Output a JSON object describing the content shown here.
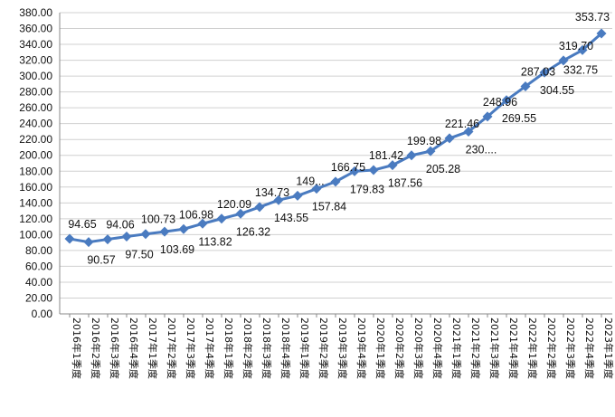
{
  "chart_data": {
    "type": "line",
    "title": "",
    "xlabel": "",
    "ylabel": "",
    "ylim": [
      0,
      380
    ],
    "y_ticks": [
      "0.00",
      "20.00",
      "40.00",
      "60.00",
      "80.00",
      "100.00",
      "120.00",
      "140.00",
      "160.00",
      "180.00",
      "200.00",
      "220.00",
      "240.00",
      "260.00",
      "280.00",
      "300.00",
      "320.00",
      "340.00",
      "360.00",
      "380.00"
    ],
    "grid": true,
    "legend": "none",
    "categories": [
      "2016年1季度",
      "2016年2季度",
      "2016年3季度",
      "2016年4季度",
      "2017年1季度",
      "2017年2季度",
      "2017年3季度",
      "2017年4季度",
      "2018年1季度",
      "2018年2季度",
      "2018年3季度",
      "2018年4季度",
      "2019年1季度",
      "2019年2季度",
      "2019年3季度",
      "2019年4季度",
      "2020年1季度",
      "2020年2季度",
      "2020年3季度",
      "2020年4季度",
      "2021年1季度",
      "2021年2季度",
      "2021年3季度",
      "2021年4季度",
      "2022年1季度",
      "2022年2季度",
      "2022年3季度",
      "2022年4季度",
      "2023年1季度"
    ],
    "series": [
      {
        "color": "#4a7bc0",
        "marker": "diamond",
        "values": [
          94.65,
          90.57,
          94.06,
          97.5,
          100.73,
          103.69,
          106.98,
          113.82,
          120.09,
          126.32,
          134.73,
          143.55,
          149,
          157.84,
          166.75,
          179.83,
          181.42,
          187.56,
          199.98,
          205.28,
          221.46,
          230,
          248.96,
          269.55,
          287.03,
          304.55,
          319.7,
          332.75,
          353.73
        ],
        "data_labels": [
          "94.65",
          "90.57",
          "94.06",
          "97.50",
          "100.73",
          "103.69",
          "106.98",
          "113.82",
          "120.09",
          "126.32",
          "134.73",
          "143.55",
          "149...",
          "157.84",
          "166.75",
          "179.83",
          "181.42",
          "187.56",
          "199.98",
          "205.28",
          "221.46",
          "230....",
          "248.96",
          "269.55",
          "287.03",
          "304.55",
          "319.70",
          "332.75",
          "353.73"
        ]
      }
    ]
  }
}
